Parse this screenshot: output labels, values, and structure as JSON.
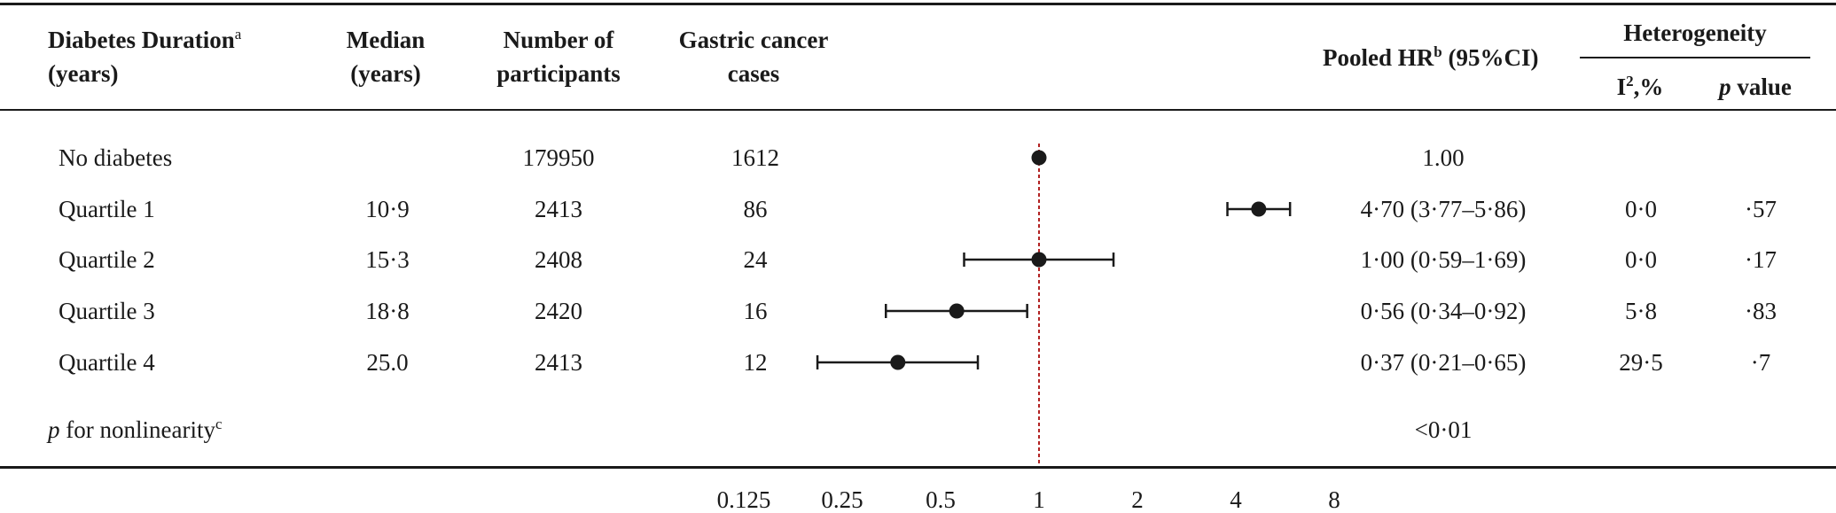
{
  "headers": {
    "duration": {
      "line1": "Diabetes Duration",
      "sup": "a",
      "line2": "(years)"
    },
    "median": {
      "line1": "Median",
      "line2": "(years)"
    },
    "participants": {
      "line1": "Number of",
      "line2": "participants"
    },
    "cases": {
      "line1": "Gastric cancer",
      "line2": "cases"
    },
    "hr": {
      "pre": "Pooled HR",
      "sup": "b",
      "post": " (95%CI)"
    },
    "heterogeneity": {
      "title": "Heterogeneity",
      "i2_base": "I",
      "i2_sup": "2",
      "i2_post": ",%",
      "p_italic": "p",
      "p_post": " value"
    }
  },
  "rows": [
    {
      "label": "No diabetes",
      "median": "",
      "participants": "179950",
      "cases": "1612",
      "hr_text": "1.00",
      "i2": "",
      "p": ""
    },
    {
      "label": "Quartile 1",
      "median": "10·9",
      "participants": "2413",
      "cases": "86",
      "hr_text": "4·70 (3·77–5·86)",
      "i2": "0·0",
      "p": "·57"
    },
    {
      "label": "Quartile 2",
      "median": "15·3",
      "participants": "2408",
      "cases": "24",
      "hr_text": "1·00 (0·59–1·69)",
      "i2": "0·0",
      "p": "·17"
    },
    {
      "label": "Quartile 3",
      "median": "18·8",
      "participants": "2420",
      "cases": "16",
      "hr_text": "0·56 (0·34–0·92)",
      "i2": "5·8",
      "p": "·83"
    },
    {
      "label": "Quartile 4",
      "median": "25.0",
      "participants": "2413",
      "cases": "12",
      "hr_text": "0·37 (0·21–0·65)",
      "i2": "29·5",
      "p": "·7"
    }
  ],
  "nonlinearity": {
    "p_italic": "p",
    "label": " for nonlinearity",
    "sup": "c",
    "value": "<0·01"
  },
  "chart_data": {
    "type": "scatter",
    "subtype": "forest",
    "x_scale": "log2",
    "xlim": [
      0.125,
      8
    ],
    "x_ticks": [
      0.125,
      0.25,
      0.5,
      1,
      2,
      4,
      8
    ],
    "x_tick_labels": [
      "0.125",
      "0.25",
      "0.5",
      "1",
      "2",
      "4",
      "8"
    ],
    "reference_line": 1,
    "reference_color": "#b22222",
    "marker_color": "#1a1a1a",
    "categories": [
      "No diabetes",
      "Quartile 1",
      "Quartile 2",
      "Quartile 3",
      "Quartile 4"
    ],
    "points": [
      {
        "category": "No diabetes",
        "hr": 1.0,
        "lo": null,
        "hi": null
      },
      {
        "category": "Quartile 1",
        "hr": 4.7,
        "lo": 3.77,
        "hi": 5.86
      },
      {
        "category": "Quartile 2",
        "hr": 1.0,
        "lo": 0.59,
        "hi": 1.69
      },
      {
        "category": "Quartile 3",
        "hr": 0.56,
        "lo": 0.34,
        "hi": 0.92
      },
      {
        "category": "Quartile 4",
        "hr": 0.37,
        "lo": 0.21,
        "hi": 0.65
      }
    ]
  }
}
